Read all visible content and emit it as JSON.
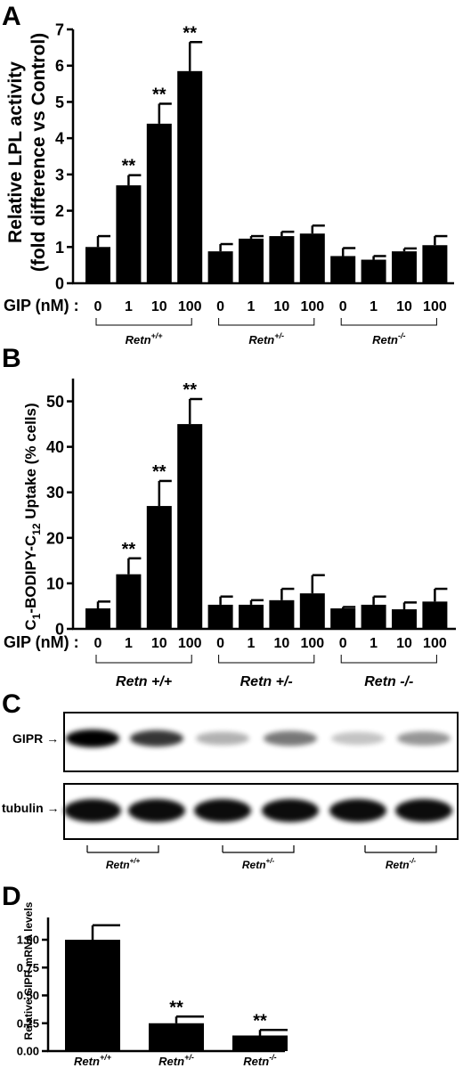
{
  "chart_data": [
    {
      "panel": "A",
      "type": "bar",
      "ylabel_line1": "Relative LPL activity",
      "ylabel_line2": "(fold difference vs Control)",
      "ylim": [
        0,
        7
      ],
      "yticks": [
        "0",
        "1",
        "2",
        "3",
        "4",
        "5",
        "6",
        "7"
      ],
      "x_prefix": "GIP (nM) :",
      "categories": [
        "0",
        "1",
        "10",
        "100",
        "0",
        "1",
        "10",
        "100",
        "0",
        "1",
        "10",
        "100"
      ],
      "values": [
        1.0,
        2.7,
        4.4,
        5.85,
        0.88,
        1.23,
        1.3,
        1.37,
        0.75,
        0.65,
        0.88,
        1.05
      ],
      "errors": [
        0.3,
        0.28,
        0.55,
        0.8,
        0.2,
        0.07,
        0.12,
        0.22,
        0.22,
        0.1,
        0.08,
        0.25
      ],
      "significance": [
        "",
        "**",
        "**",
        "**",
        "",
        "",
        "",
        "",
        "",
        "",
        "",
        ""
      ],
      "groups": [
        {
          "base": "Retn",
          "sup": "+/+"
        },
        {
          "base": "Retn",
          "sup": "+/-"
        },
        {
          "base": "Retn",
          "sup": "-/-"
        }
      ]
    },
    {
      "panel": "B",
      "type": "bar",
      "ylabel_parts": [
        "C",
        "1",
        "-BODIPY-C",
        "12",
        " Uptake (% cells)"
      ],
      "ylim": [
        0,
        55
      ],
      "yticks": [
        "0",
        "10",
        "20",
        "30",
        "40",
        "50"
      ],
      "x_prefix": "GIP (nM) :",
      "categories": [
        "0",
        "1",
        "10",
        "100",
        "0",
        "1",
        "10",
        "100",
        "0",
        "1",
        "10",
        "100"
      ],
      "values": [
        4.5,
        12.0,
        27.0,
        45.0,
        5.3,
        5.3,
        6.3,
        7.8,
        4.5,
        5.3,
        4.3,
        6.0
      ],
      "errors": [
        1.5,
        3.5,
        5.5,
        5.5,
        1.8,
        1.0,
        2.5,
        4.0,
        0.3,
        1.8,
        1.5,
        2.8
      ],
      "significance": [
        "",
        "**",
        "**",
        "**",
        "",
        "",
        "",
        "",
        "",
        "",
        "",
        ""
      ],
      "groups": [
        "Retn +/+",
        "Retn +/-",
        "Retn -/-"
      ]
    },
    {
      "panel": "D",
      "type": "bar",
      "ylabel": "Relative GIPR mRNA levels",
      "ylim": [
        0,
        1.2
      ],
      "yticks": [
        "0.00",
        "0.25",
        "0.50",
        "0.75",
        "1.00"
      ],
      "categories": [
        {
          "base": "Retn",
          "sup": "+/+"
        },
        {
          "base": "Retn",
          "sup": "+/-"
        },
        {
          "base": "Retn",
          "sup": "-/-"
        }
      ],
      "values": [
        1.0,
        0.25,
        0.14
      ],
      "errors": [
        0.13,
        0.06,
        0.05
      ],
      "significance": [
        "",
        "**",
        "**"
      ]
    }
  ],
  "panels": {
    "a": "A",
    "b": "B",
    "c": "C",
    "d": "D"
  },
  "blot": {
    "rows": [
      {
        "label": "GIPR →"
      },
      {
        "label": "tubulin →"
      }
    ],
    "gipr_intensity": [
      1.0,
      0.75,
      0.18,
      0.45,
      0.1,
      0.3
    ],
    "groups": [
      {
        "base": "Retn",
        "sup": "+/+"
      },
      {
        "base": "Retn",
        "sup": "+/-"
      },
      {
        "base": "Retn",
        "sup": "-/-"
      }
    ]
  }
}
